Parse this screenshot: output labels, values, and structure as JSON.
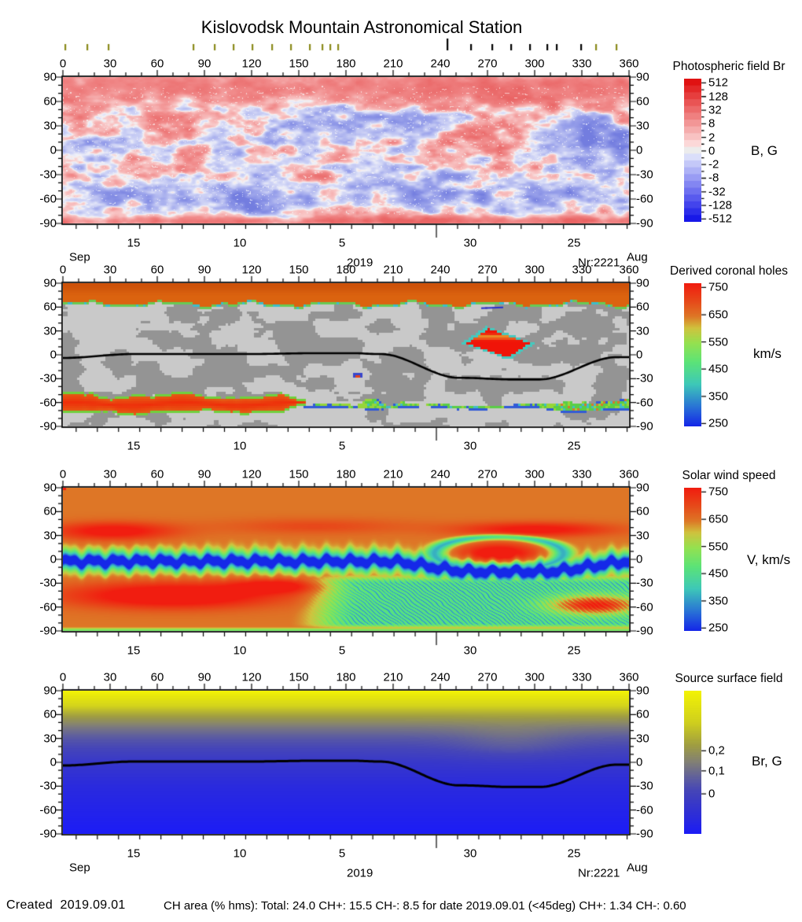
{
  "title": "Kislovodsk Mountain Astronomical Station",
  "panels": [
    {
      "title": "Photospheric field Br",
      "unit": "B, G",
      "cbar_ticks": [
        "512",
        "128",
        "32",
        "8",
        "2",
        "0",
        "-2",
        "-8",
        "-32",
        "-128",
        "-512"
      ]
    },
    {
      "title": "Derived coronal holes",
      "unit": "km/s",
      "cbar_ticks": [
        "750",
        "650",
        "550",
        "450",
        "350",
        "250"
      ]
    },
    {
      "title": "Solar wind speed",
      "unit": "V, km/s",
      "cbar_ticks": [
        "750",
        "650",
        "550",
        "450",
        "350",
        "250"
      ]
    },
    {
      "title": "Source surface field",
      "unit": "Br, G",
      "cbar_ticks": [
        "0,2",
        "0,1",
        "0"
      ]
    }
  ],
  "axes": {
    "lon_ticks": [
      "0",
      "30",
      "60",
      "90",
      "120",
      "150",
      "180",
      "210",
      "240",
      "270",
      "300",
      "330",
      "360"
    ],
    "lat_ticks": [
      "90",
      "60",
      "30",
      "0",
      "-30",
      "-60",
      "-90"
    ],
    "date_labels": [
      "15",
      "10",
      "5",
      "30",
      "25"
    ],
    "left_month": "Sep",
    "right_month": "Aug",
    "year": "2019",
    "rotation": "Nr:2221"
  },
  "top_markers": {
    "olive": [
      82,
      110,
      137,
      245,
      272,
      296,
      320,
      345,
      369,
      393,
      409,
      419,
      429,
      757,
      783
    ],
    "black": [
      598,
      625,
      649,
      673,
      695,
      707,
      738
    ],
    "tall_black": 568
  },
  "colors": {
    "marker_olive": "#8a8a1a",
    "accent_red": "#ee1408",
    "accent_orange": "#dd640f",
    "accent_blue": "#1c1cec",
    "footer_text": "#000000",
    "background": "#ffffff"
  },
  "footer": {
    "created_label": "Created",
    "created_date": "2019.09.01",
    "ch_area": "CH area (% hms): Total: 24.0 CH+: 15.5   CH-: 8.5 for date 2019.09.01 (<45deg) CH+: 1.34    CH-: 0.60"
  },
  "ch_area_stats": {
    "total": 24.0,
    "ch_plus": 15.5,
    "ch_minus": 8.5,
    "for_date": "2019.09.01",
    "lt45deg_ch_plus": 1.34,
    "lt45deg_ch_minus": 0.6
  },
  "chart_data": [
    {
      "type": "heatmap",
      "title": "Photospheric field Br",
      "xlim": [
        0,
        360
      ],
      "ylim": [
        -90,
        90
      ],
      "x_ticks": [
        0,
        30,
        60,
        90,
        120,
        150,
        180,
        210,
        240,
        270,
        300,
        330,
        360
      ],
      "y_ticks": [
        90,
        60,
        30,
        0,
        -30,
        -60,
        -90
      ],
      "time_axis": {
        "months": [
          "Sep",
          "Aug"
        ],
        "year": 2019,
        "day_labels": [
          15,
          10,
          5,
          30,
          25
        ],
        "carrington_rotation": 2221
      },
      "colorbar": {
        "title": "Photospheric field Br",
        "unit": "B, G",
        "tick_values": [
          512,
          128,
          32,
          8,
          2,
          0,
          -2,
          -8,
          -32,
          -128,
          -512
        ],
        "scale": "red = positive Br, white = 0, blue = negative Br, discrete log steps"
      },
      "features": [
        {
          "name": "north polar positive cap",
          "lat": [
            60,
            90
          ],
          "color": "pink"
        },
        {
          "name": "south polar positive rim",
          "lat": [
            -90,
            -80
          ],
          "color": "pink"
        },
        {
          "name": "negative mid-south band",
          "lat": [
            -75,
            -42
          ],
          "color": "blue"
        },
        {
          "name": "strong positive active region",
          "lon": [
            250,
            300
          ],
          "lat": [
            0,
            30
          ],
          "color": "red"
        },
        {
          "name": "strong negative region",
          "lon": [
            305,
            360
          ],
          "lat": [
            0,
            40
          ],
          "color": "blue"
        },
        {
          "name": "mixed-polarity mottling",
          "lat": [
            -40,
            55
          ],
          "color": "red/blue speckle with white gaps"
        }
      ]
    },
    {
      "type": "heatmap",
      "title": "Derived coronal holes",
      "xlim": [
        0,
        360
      ],
      "ylim": [
        -90,
        90
      ],
      "x_ticks": [
        0,
        30,
        60,
        90,
        120,
        150,
        180,
        210,
        240,
        270,
        300,
        330,
        360
      ],
      "y_ticks": [
        90,
        60,
        30,
        0,
        -30,
        -60,
        -90
      ],
      "colorbar": {
        "title": "Derived coronal holes",
        "unit": "km/s",
        "tick_values": [
          750,
          650,
          550,
          450,
          350,
          250
        ]
      },
      "background": "quiet Sun shown as light/dark gray mottling",
      "features": [
        {
          "name": "north polar coronal hole",
          "lon": [
            0,
            360
          ],
          "lat": [
            66,
            90
          ],
          "color": "orange, green boundary"
        },
        {
          "name": "south coronal hole",
          "lon": [
            0,
            155
          ],
          "lat": [
            -70,
            -52
          ],
          "color": "red-orange, green boundary"
        },
        {
          "name": "south boundary strip",
          "lon": [
            155,
            360
          ],
          "lat": [
            -70,
            -58
          ],
          "color": "green/cyan, wider past lon 300"
        },
        {
          "name": "isolated low-latitude coronal hole",
          "lon": [
            255,
            296
          ],
          "lat": [
            -2,
            35
          ],
          "color": "bright red, cyan border"
        },
        {
          "name": "small coronal hole",
          "lon": [
            184,
            190
          ],
          "lat": [
            -28,
            -22
          ],
          "color": "red, blue border"
        }
      ],
      "neutral_line": [
        [
          0,
          -4
        ],
        [
          45,
          1
        ],
        [
          90,
          1
        ],
        [
          150,
          2
        ],
        [
          190,
          1
        ],
        [
          215,
          -6
        ],
        [
          240,
          -24
        ],
        [
          275,
          -30
        ],
        [
          300,
          -31
        ],
        [
          330,
          -16
        ],
        [
          360,
          -4
        ]
      ]
    },
    {
      "type": "heatmap",
      "title": "Solar wind speed",
      "xlim": [
        0,
        360
      ],
      "ylim": [
        -90,
        90
      ],
      "x_ticks": [
        0,
        30,
        60,
        90,
        120,
        150,
        180,
        210,
        240,
        270,
        300,
        330,
        360
      ],
      "y_ticks": [
        90,
        60,
        30,
        0,
        -30,
        -60,
        -90
      ],
      "colorbar": {
        "title": "Solar wind speed",
        "unit": "V, km/s",
        "tick_values": [
          750,
          650,
          550,
          450,
          350,
          250
        ]
      },
      "features": [
        {
          "name": "fast wind background",
          "value_kms": 650,
          "color": "orange",
          "desc": "high latitudes"
        },
        {
          "name": "slow wind belt",
          "value_kms": 300,
          "color": "green with blue core",
          "desc": "follows current sheet, lat ~0 for lon<210, dips to -15..-25 for lon 230-340"
        },
        {
          "name": "fast stream ring interior",
          "lon": [
            245,
            310
          ],
          "lat": [
            -5,
            25
          ],
          "value_kms": 750
        },
        {
          "name": "fast regions",
          "locations_lon_lat": [
            [
              32,
              36
            ],
            [
              70,
              -45
            ],
            [
              135,
              -33
            ],
            [
              300,
              38
            ],
            [
              338,
              -57
            ]
          ],
          "value_kms": 750
        },
        {
          "name": "feathered slow streams",
          "lon": [
            150,
            360
          ],
          "lat": [
            -85,
            -25
          ],
          "color": "green filaments with blue streaks"
        }
      ]
    },
    {
      "type": "heatmap",
      "title": "Source surface field",
      "xlim": [
        0,
        360
      ],
      "ylim": [
        -90,
        90
      ],
      "x_ticks": [
        0,
        30,
        60,
        90,
        120,
        150,
        180,
        210,
        240,
        270,
        300,
        330,
        360
      ],
      "y_ticks": [
        90,
        60,
        30,
        0,
        -30,
        -60,
        -90
      ],
      "colorbar": {
        "title": "Source surface field",
        "unit": "Br, G",
        "tick_values_labels": [
          "0,2",
          "0,1",
          "0"
        ]
      },
      "gradient": "positive field (yellow) in north hemisphere fading through gray to negative field (blue) in south",
      "lighter_region": {
        "lon": [
          250,
          320
        ],
        "lat": [
          0,
          45
        ]
      },
      "neutral_line": [
        [
          0,
          -4
        ],
        [
          45,
          1
        ],
        [
          90,
          1
        ],
        [
          150,
          2
        ],
        [
          190,
          1
        ],
        [
          215,
          -6
        ],
        [
          240,
          -24
        ],
        [
          275,
          -30
        ],
        [
          300,
          -31
        ],
        [
          330,
          -16
        ],
        [
          360,
          -4
        ]
      ]
    }
  ]
}
